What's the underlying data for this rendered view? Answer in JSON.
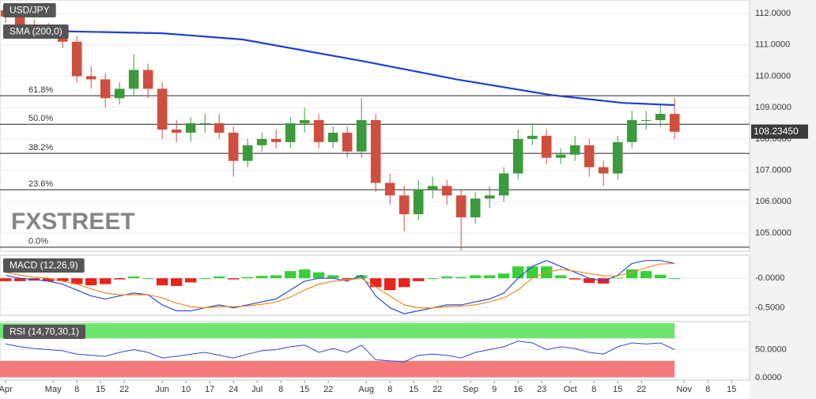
{
  "chart_data": [
    {
      "type": "candlestick",
      "title": "USD/JPY",
      "watermark": "FXSTREET",
      "x": [
        -10,
        -7,
        -4,
        -1,
        2,
        5,
        8,
        11,
        14,
        17,
        20,
        23,
        26,
        29,
        32,
        35,
        38,
        41,
        44,
        47,
        50,
        53,
        56,
        59,
        62,
        65,
        68,
        71,
        74,
        77,
        80,
        83,
        86,
        89,
        92,
        95,
        98,
        101,
        104,
        107,
        110,
        113,
        116,
        119,
        122,
        125,
        128,
        131
      ],
      "open": [
        112.1,
        111.9,
        111.6,
        111.5,
        111.3,
        111.1,
        110.0,
        109.9,
        109.3,
        109.6,
        110.2,
        109.6,
        108.3,
        108.2,
        108.5,
        108.5,
        108.2,
        107.3,
        107.8,
        108.0,
        107.9,
        108.5,
        108.6,
        107.9,
        108.2,
        107.6,
        108.6,
        106.6,
        106.2,
        105.6,
        106.4,
        106.5,
        106.2,
        105.5,
        106.1,
        106.2,
        106.9,
        108.0,
        108.1,
        107.4,
        107.5,
        107.8,
        107.1,
        106.9,
        107.9,
        108.6,
        108.6,
        108.8
      ],
      "high": [
        112.3,
        112.1,
        111.8,
        111.7,
        111.5,
        111.3,
        110.3,
        110.1,
        109.8,
        110.7,
        110.4,
        109.8,
        108.6,
        108.7,
        108.8,
        108.8,
        108.4,
        108.0,
        108.2,
        108.3,
        108.7,
        109.0,
        108.8,
        108.4,
        108.4,
        109.3,
        108.8,
        106.9,
        106.5,
        106.7,
        106.8,
        106.7,
        106.4,
        106.3,
        106.5,
        107.1,
        108.3,
        108.5,
        108.3,
        107.7,
        108.1,
        108.0,
        107.3,
        108.1,
        108.9,
        108.9,
        109.1,
        109.3
      ],
      "low": [
        111.7,
        111.4,
        111.3,
        111.2,
        110.9,
        109.8,
        109.6,
        109.0,
        109.1,
        109.4,
        109.3,
        108.0,
        107.9,
        107.9,
        108.2,
        108.0,
        106.8,
        107.1,
        107.6,
        107.7,
        107.7,
        108.2,
        107.7,
        107.7,
        107.4,
        107.4,
        106.3,
        105.9,
        105.05,
        105.4,
        106.1,
        105.9,
        104.45,
        105.3,
        105.8,
        106.0,
        106.7,
        107.8,
        107.2,
        107.2,
        107.3,
        106.8,
        106.5,
        106.7,
        107.7,
        108.3,
        108.4,
        108.0
      ],
      "close": [
        111.9,
        111.6,
        111.5,
        111.3,
        111.1,
        110.0,
        109.9,
        109.3,
        109.6,
        110.2,
        109.6,
        108.3,
        108.2,
        108.5,
        108.5,
        108.2,
        107.3,
        107.8,
        108.0,
        107.9,
        108.5,
        108.6,
        107.9,
        108.2,
        107.6,
        108.6,
        106.6,
        106.2,
        105.6,
        106.4,
        106.5,
        106.2,
        105.5,
        106.1,
        106.2,
        106.9,
        108.0,
        108.1,
        107.4,
        107.5,
        107.8,
        107.1,
        106.9,
        107.9,
        108.6,
        108.6,
        108.8,
        108.23
      ],
      "up_color": "#3c9a3c",
      "down_color": "#cf4f3f",
      "overlay": {
        "name": "SMA (200,0)",
        "color": "#1f3fd1",
        "x": [
          -10,
          23,
          40,
          66,
          85,
          105,
          120,
          131
        ],
        "values": [
          111.47,
          111.37,
          111.17,
          110.46,
          109.9,
          109.4,
          109.15,
          109.08
        ]
      },
      "levels": [
        {
          "name": "61.8%",
          "value": 109.38
        },
        {
          "name": "50.0%",
          "value": 108.47
        },
        {
          "name": "38.2%",
          "value": 107.54
        },
        {
          "name": "23.6%",
          "value": 106.38
        },
        {
          "name": "0.0%",
          "value": 104.55
        }
      ],
      "last_price": {
        "value": 108.2345,
        "label": "108.23450"
      },
      "ylim": [
        104.42,
        112.43
      ],
      "yticks": [
        {
          "value": 112,
          "label": "112.0000"
        },
        {
          "value": 111,
          "label": "111.0000"
        },
        {
          "value": 110,
          "label": "110.0000"
        },
        {
          "value": 109,
          "label": "109.0000"
        },
        {
          "value": 108,
          "label": "108.0000"
        },
        {
          "value": 107,
          "label": "107.0000"
        },
        {
          "value": 106,
          "label": "106.0000"
        },
        {
          "value": 105,
          "label": "105.0000"
        }
      ],
      "xlim": [
        -11.2,
        146.8
      ],
      "xticks": [
        {
          "value": -10,
          "label": "Apr"
        },
        {
          "value": 0,
          "label": "May"
        },
        {
          "value": 5,
          "label": "8"
        },
        {
          "value": 10,
          "label": "15"
        },
        {
          "value": 15,
          "label": "22"
        },
        {
          "value": 23,
          "label": "Jun"
        },
        {
          "value": 28,
          "label": "10"
        },
        {
          "value": 33,
          "label": "17"
        },
        {
          "value": 38,
          "label": "24"
        },
        {
          "value": 43,
          "label": "Jul"
        },
        {
          "value": 48,
          "label": "8"
        },
        {
          "value": 53,
          "label": "15"
        },
        {
          "value": 58,
          "label": "22"
        },
        {
          "value": 66,
          "label": "Aug"
        },
        {
          "value": 71,
          "label": "8"
        },
        {
          "value": 76,
          "label": "15"
        },
        {
          "value": 81,
          "label": "22"
        },
        {
          "value": 88,
          "label": "Sep"
        },
        {
          "value": 93,
          "label": "9"
        },
        {
          "value": 98,
          "label": "16"
        },
        {
          "value": 103,
          "label": "23"
        },
        {
          "value": 109,
          "label": "Oct"
        },
        {
          "value": 114,
          "label": "8"
        },
        {
          "value": 119,
          "label": "15"
        },
        {
          "value": 124,
          "label": "22"
        },
        {
          "value": 133,
          "label": "Nov"
        },
        {
          "value": 138,
          "label": "8"
        },
        {
          "value": 143,
          "label": "15"
        }
      ]
    },
    {
      "type": "macd",
      "title": "MACD (12,26,9)",
      "series": [
        {
          "color": "#2a4bd7",
          "values": [
            0.05,
            0.0,
            -0.02,
            -0.05,
            -0.1,
            -0.2,
            -0.3,
            -0.35,
            -0.3,
            -0.25,
            -0.28,
            -0.45,
            -0.55,
            -0.55,
            -0.5,
            -0.45,
            -0.5,
            -0.45,
            -0.4,
            -0.35,
            -0.2,
            -0.05,
            0.0,
            0.0,
            -0.05,
            0.05,
            -0.3,
            -0.5,
            -0.6,
            -0.55,
            -0.5,
            -0.45,
            -0.45,
            -0.4,
            -0.35,
            -0.25,
            0.0,
            0.2,
            0.3,
            0.2,
            0.1,
            0.0,
            -0.05,
            0.05,
            0.25,
            0.3,
            0.3,
            0.25
          ]
        },
        {
          "color": "#f08a24",
          "values": [
            0.1,
            0.05,
            0.02,
            0.0,
            -0.05,
            -0.1,
            -0.18,
            -0.25,
            -0.28,
            -0.28,
            -0.28,
            -0.33,
            -0.42,
            -0.48,
            -0.5,
            -0.48,
            -0.48,
            -0.47,
            -0.44,
            -0.4,
            -0.32,
            -0.2,
            -0.1,
            -0.05,
            -0.03,
            0.0,
            -0.15,
            -0.3,
            -0.45,
            -0.5,
            -0.5,
            -0.48,
            -0.47,
            -0.45,
            -0.4,
            -0.33,
            -0.2,
            0.0,
            0.1,
            0.15,
            0.12,
            0.08,
            0.04,
            0.04,
            0.1,
            0.18,
            0.24,
            0.25
          ]
        }
      ],
      "histogram": {
        "pos_color": "#37d037",
        "neg_color": "#e8231b",
        "values": [
          -0.05,
          -0.05,
          -0.04,
          -0.05,
          -0.05,
          -0.1,
          -0.12,
          -0.1,
          -0.02,
          0.03,
          0.0,
          -0.12,
          -0.13,
          -0.07,
          0.0,
          0.03,
          -0.02,
          0.02,
          0.04,
          0.05,
          0.12,
          0.15,
          0.1,
          0.05,
          -0.02,
          0.05,
          -0.15,
          -0.2,
          -0.15,
          -0.05,
          0.0,
          0.03,
          0.02,
          0.05,
          0.05,
          0.08,
          0.2,
          0.2,
          0.2,
          0.05,
          -0.02,
          -0.08,
          -0.09,
          0.01,
          0.15,
          0.12,
          0.06,
          0.0
        ]
      },
      "ylim": [
        -0.625,
        0.389
      ],
      "yticks": [
        {
          "value": 0,
          "label": "-0.0000"
        },
        {
          "value": -0.5,
          "label": "-0.5000"
        }
      ]
    },
    {
      "type": "rsi",
      "title": "RSI (14,70,30,1)",
      "color": "#2a4bd7",
      "values": [
        60,
        55,
        52,
        50,
        48,
        42,
        40,
        38,
        45,
        50,
        45,
        35,
        38,
        42,
        45,
        40,
        35,
        42,
        48,
        50,
        55,
        58,
        45,
        52,
        45,
        58,
        32,
        30,
        28,
        40,
        42,
        40,
        35,
        45,
        50,
        55,
        65,
        62,
        50,
        55,
        52,
        45,
        42,
        55,
        62,
        60,
        62,
        50
      ],
      "upper": 70,
      "lower": 30,
      "upper_color": "#6ee56e",
      "lower_color": "#f47a7a",
      "ylim": [
        -4.3,
        100
      ],
      "yticks": [
        {
          "value": 50,
          "label": "50.0000"
        },
        {
          "value": 0,
          "label": "0.0000"
        }
      ]
    }
  ]
}
